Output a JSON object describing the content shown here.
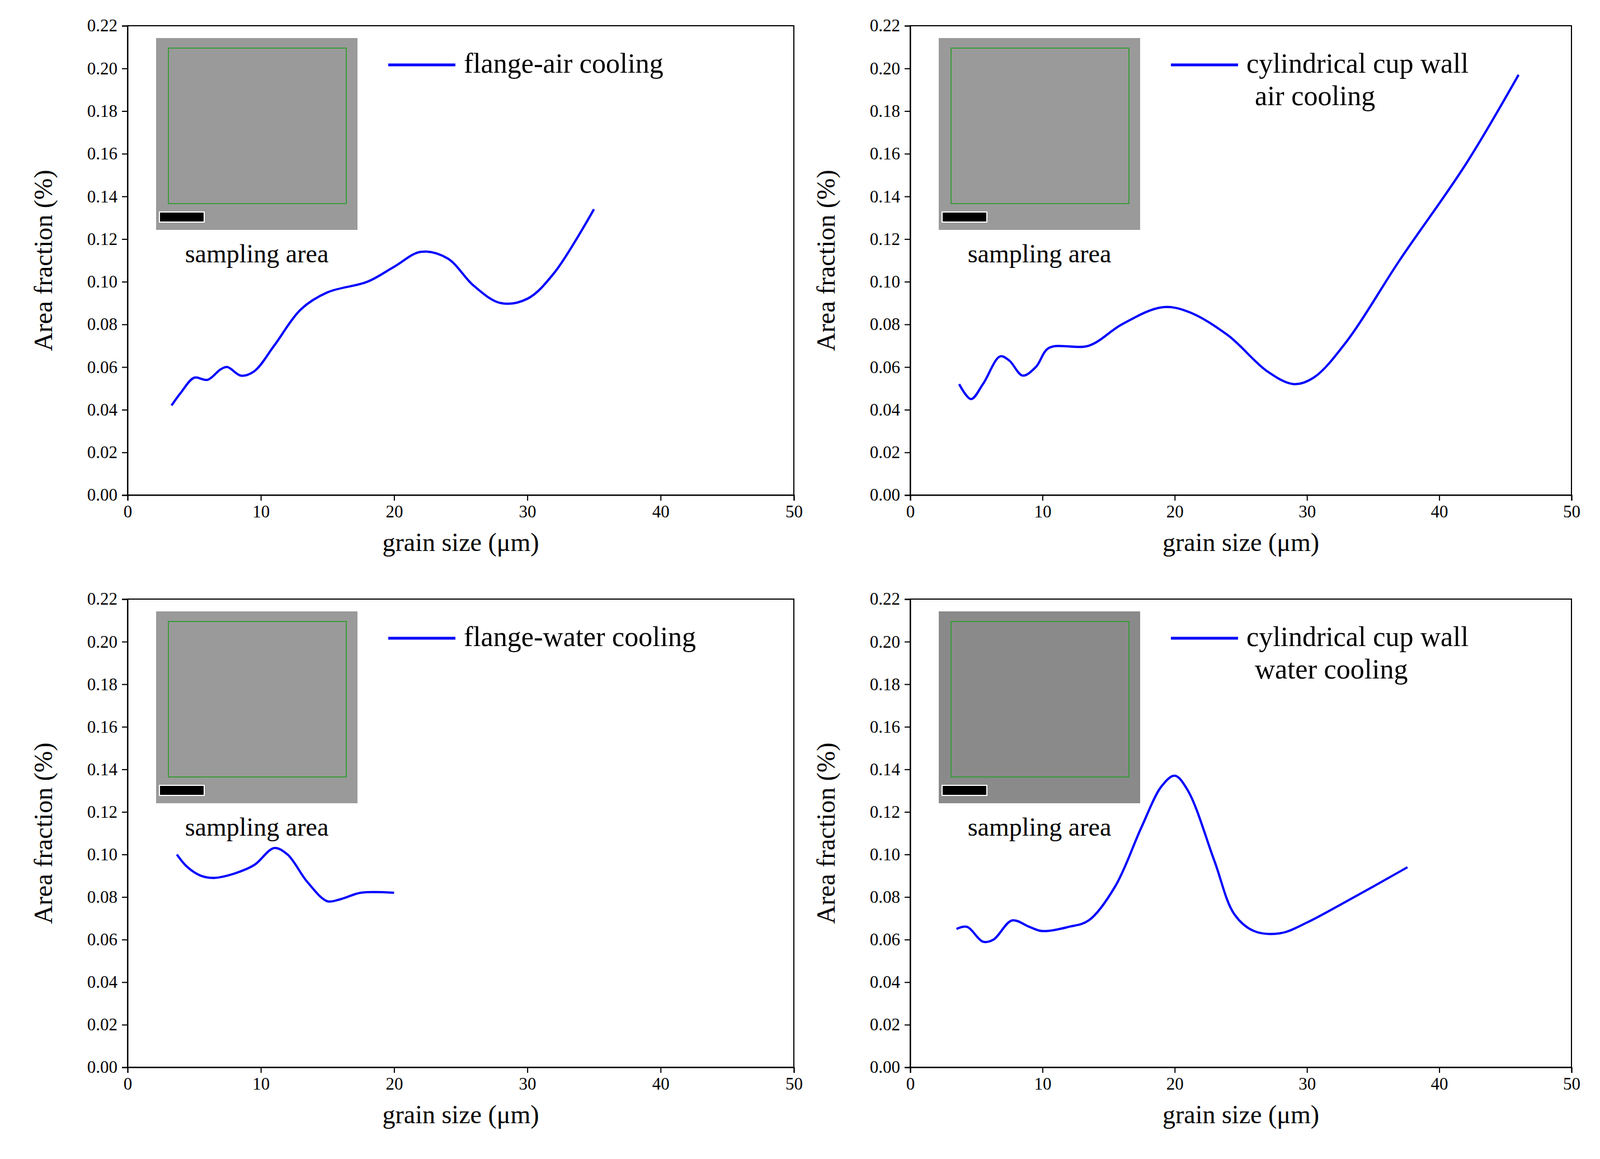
{
  "chart_data": [
    {
      "type": "line",
      "x_label": "grain size (μm)",
      "y_label": "Area fraction (%)",
      "annotations": [
        "sampling area"
      ],
      "xlim": [
        0,
        50
      ],
      "ylim": [
        0,
        0.22
      ],
      "xticks": [
        0,
        10,
        20,
        30,
        40,
        50
      ],
      "yticks": [
        {
          "value": 0,
          "label": "0.00"
        },
        {
          "value": 0.02,
          "label": "0.02"
        },
        {
          "value": 0.04,
          "label": "0.04"
        },
        {
          "value": 0.06,
          "label": "0.06"
        },
        {
          "value": 0.08,
          "label": "0.08"
        },
        {
          "value": 0.1,
          "label": "0.10"
        },
        {
          "value": 0.12,
          "label": "0.12"
        },
        {
          "value": 0.14,
          "label": "0.14"
        },
        {
          "value": 0.16,
          "label": "0.16"
        },
        {
          "value": 0.18,
          "label": "0.18"
        },
        {
          "value": 0.2,
          "label": "0.20"
        },
        {
          "value": 0.22,
          "label": "0.22"
        }
      ],
      "x": [
        3.3,
        4,
        5,
        6,
        7,
        7.5,
        8.5,
        9.5,
        11,
        13,
        15,
        18,
        20,
        22,
        24,
        26,
        28,
        30,
        32,
        35
      ],
      "series": [
        {
          "name": "flange-air cooling",
          "color": "#0000ff",
          "values": [
            0.042,
            0.048,
            0.055,
            0.054,
            0.059,
            0.06,
            0.056,
            0.058,
            0.07,
            0.087,
            0.095,
            0.1,
            0.107,
            0.114,
            0.111,
            0.098,
            0.09,
            0.092,
            0.104,
            0.134
          ]
        }
      ]
    },
    {
      "type": "line",
      "x_label": "grain size (μm)",
      "y_label": "Area fraction (%)",
      "annotations": [
        "sampling area"
      ],
      "xlim": [
        0,
        50
      ],
      "ylim": [
        0,
        0.22
      ],
      "xticks": [
        0,
        10,
        20,
        30,
        40,
        50
      ],
      "yticks": [
        {
          "value": 0,
          "label": "0.00"
        },
        {
          "value": 0.02,
          "label": "0.02"
        },
        {
          "value": 0.04,
          "label": "0.04"
        },
        {
          "value": 0.06,
          "label": "0.06"
        },
        {
          "value": 0.08,
          "label": "0.08"
        },
        {
          "value": 0.1,
          "label": "0.10"
        },
        {
          "value": 0.12,
          "label": "0.12"
        },
        {
          "value": 0.14,
          "label": "0.14"
        },
        {
          "value": 0.16,
          "label": "0.16"
        },
        {
          "value": 0.18,
          "label": "0.18"
        },
        {
          "value": 0.2,
          "label": "0.20"
        },
        {
          "value": 0.22,
          "label": "0.22"
        }
      ],
      "x": [
        3.7,
        4.6,
        5.5,
        6.8,
        7.5,
        8.5,
        9.5,
        10.5,
        13.5,
        16,
        19,
        21,
        24,
        27,
        29,
        30.5,
        33,
        37,
        42,
        46
      ],
      "series": [
        {
          "name": "cylindrical cup wall air cooling",
          "color": "#0000ff",
          "values": [
            0.052,
            0.045,
            0.052,
            0.065,
            0.063,
            0.056,
            0.06,
            0.069,
            0.07,
            0.08,
            0.088,
            0.086,
            0.075,
            0.058,
            0.052,
            0.055,
            0.072,
            0.11,
            0.155,
            0.197
          ]
        }
      ]
    },
    {
      "type": "line",
      "x_label": "grain size (μm)",
      "y_label": "Area fraction (%)",
      "annotations": [
        "sampling area"
      ],
      "xlim": [
        0,
        50
      ],
      "ylim": [
        0,
        0.22
      ],
      "xticks": [
        0,
        10,
        20,
        30,
        40,
        50
      ],
      "yticks": [
        {
          "value": 0,
          "label": "0.00"
        },
        {
          "value": 0.02,
          "label": "0.02"
        },
        {
          "value": 0.04,
          "label": "0.04"
        },
        {
          "value": 0.06,
          "label": "0.06"
        },
        {
          "value": 0.08,
          "label": "0.08"
        },
        {
          "value": 0.1,
          "label": "0.10"
        },
        {
          "value": 0.12,
          "label": "0.12"
        },
        {
          "value": 0.14,
          "label": "0.14"
        },
        {
          "value": 0.16,
          "label": "0.16"
        },
        {
          "value": 0.18,
          "label": "0.18"
        },
        {
          "value": 0.2,
          "label": "0.20"
        },
        {
          "value": 0.22,
          "label": "0.22"
        }
      ],
      "x": [
        3.7,
        4.5,
        5.5,
        6.5,
        8,
        9.5,
        11,
        12,
        13.5,
        15,
        16,
        17.5,
        20
      ],
      "series": [
        {
          "name": "flange-water cooling",
          "color": "#0000ff",
          "values": [
            0.1,
            0.094,
            0.09,
            0.089,
            0.091,
            0.095,
            0.103,
            0.1,
            0.087,
            0.078,
            0.079,
            0.082,
            0.082
          ]
        }
      ]
    },
    {
      "type": "line",
      "x_label": "grain size (μm)",
      "y_label": "Area fraction (%)",
      "annotations": [
        "sampling area"
      ],
      "xlim": [
        0,
        50
      ],
      "ylim": [
        0,
        0.22
      ],
      "xticks": [
        0,
        10,
        20,
        30,
        40,
        50
      ],
      "yticks": [
        {
          "value": 0,
          "label": "0.00"
        },
        {
          "value": 0.02,
          "label": "0.02"
        },
        {
          "value": 0.04,
          "label": "0.04"
        },
        {
          "value": 0.06,
          "label": "0.06"
        },
        {
          "value": 0.08,
          "label": "0.08"
        },
        {
          "value": 0.1,
          "label": "0.10"
        },
        {
          "value": 0.12,
          "label": "0.12"
        },
        {
          "value": 0.14,
          "label": "0.14"
        },
        {
          "value": 0.16,
          "label": "0.16"
        },
        {
          "value": 0.18,
          "label": "0.18"
        },
        {
          "value": 0.2,
          "label": "0.20"
        },
        {
          "value": 0.22,
          "label": "0.22"
        }
      ],
      "x": [
        3.5,
        4.3,
        5.5,
        6.3,
        7.7,
        9,
        10,
        12,
        13.5,
        15.5,
        17.5,
        19,
        20,
        21,
        23,
        24.5,
        26,
        28,
        30,
        33,
        37.6
      ],
      "series": [
        {
          "name": "cylindrical cup wall water cooling",
          "color": "#0000ff",
          "values": [
            0.065,
            0.066,
            0.059,
            0.06,
            0.069,
            0.066,
            0.064,
            0.066,
            0.069,
            0.085,
            0.113,
            0.132,
            0.137,
            0.13,
            0.097,
            0.072,
            0.064,
            0.063,
            0.068,
            0.078,
            0.094
          ]
        }
      ]
    }
  ]
}
